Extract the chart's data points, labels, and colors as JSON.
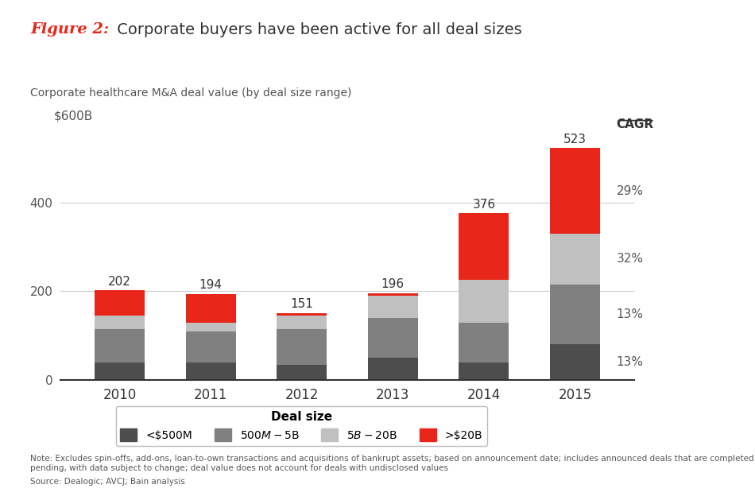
{
  "years": [
    "2010",
    "2011",
    "2012",
    "2013",
    "2014",
    "2015"
  ],
  "totals": [
    202,
    194,
    151,
    196,
    376,
    523
  ],
  "segments": {
    "<$500M": [
      40,
      40,
      35,
      50,
      40,
      80
    ],
    "$500M-$5B": [
      75,
      70,
      80,
      90,
      90,
      135
    ],
    "$5B-$20B": [
      30,
      20,
      30,
      50,
      95,
      115
    ],
    ">$20B": [
      57,
      64,
      6,
      6,
      151,
      193
    ]
  },
  "colors": {
    "<$500M": "#4d4d4d",
    "$500M-$5B": "#808080",
    "$5B-$20B": "#c0c0c0",
    ">$20B": "#e8261a"
  },
  "cagr_labels": [
    "29%",
    "32%",
    "13%",
    "13%"
  ],
  "title_fig": "Figure 2:",
  "title_main": " Corporate buyers have been active for all deal sizes",
  "subtitle": "Corporate healthcare M&A deal value (by deal size range)",
  "cagr_title": "CAGR",
  "legend_title": "Deal size",
  "note": "Note: Excludes spin-offs, add-ons, loan-to-own transactions and acquisitions of bankrupt assets; based on announcement date; includes announced deals that are completed or\npending, with data subject to change; deal value does not account for deals with undisclosed values",
  "source": "Source: Dealogic; AVCJ; Bain analysis",
  "bg_color": "#ffffff",
  "bar_width": 0.55
}
